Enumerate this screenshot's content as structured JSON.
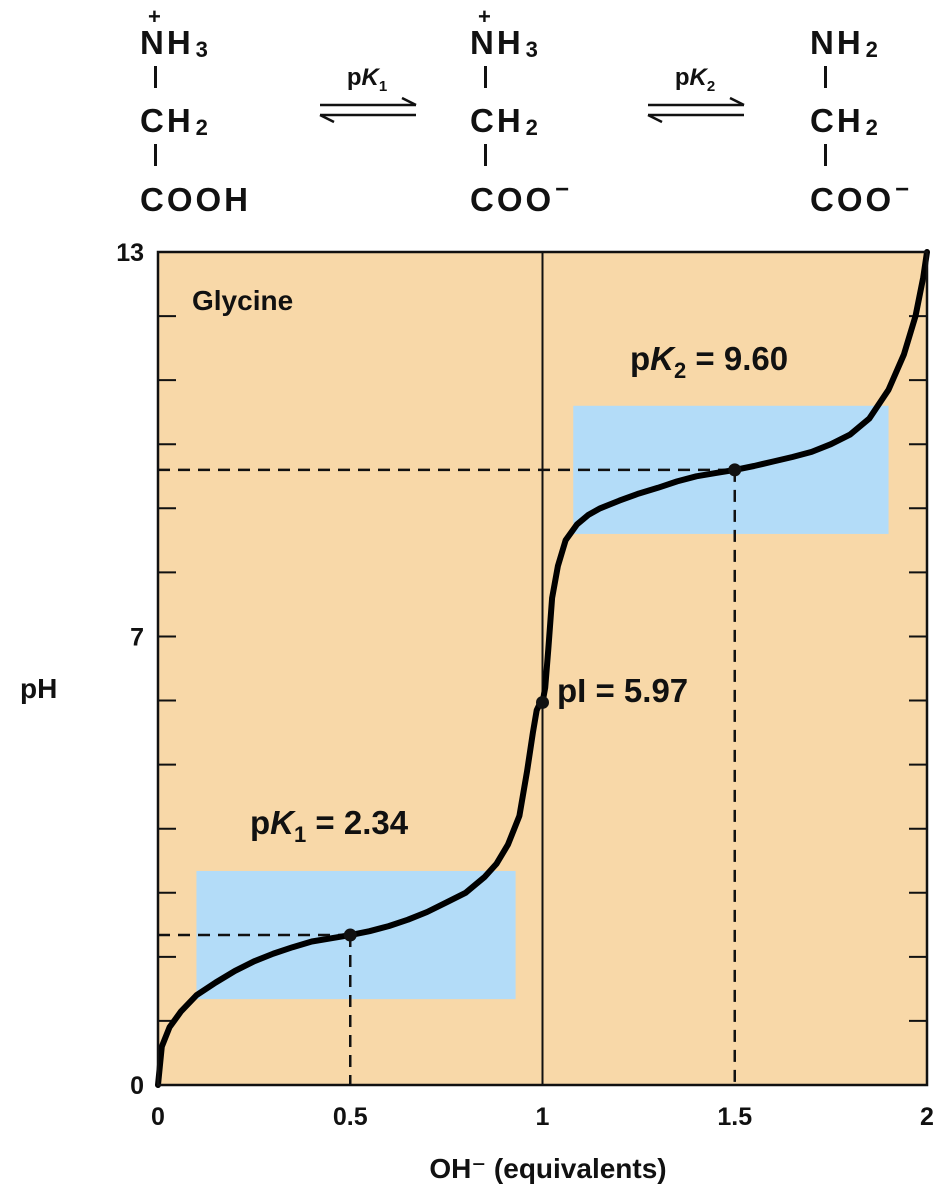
{
  "reaction": {
    "species": [
      {
        "top": "NH",
        "top_sub": "3",
        "top_charge": "+",
        "mid": "CH",
        "mid_sub": "2",
        "bottom": "COOH",
        "bottom_charge": ""
      },
      {
        "top": "NH",
        "top_sub": "3",
        "top_charge": "+",
        "mid": "CH",
        "mid_sub": "2",
        "bottom": "COO",
        "bottom_charge": "−"
      },
      {
        "top": "NH",
        "top_sub": "2",
        "top_charge": "",
        "mid": "CH",
        "mid_sub": "2",
        "bottom": "COO",
        "bottom_charge": "−"
      }
    ],
    "equilibria": [
      {
        "prefix": "p",
        "symbol": "K",
        "sub": "1"
      },
      {
        "prefix": "p",
        "symbol": "K",
        "sub": "2"
      }
    ]
  },
  "chart_data": {
    "type": "line",
    "title": "Glycine",
    "xlabel": "OH⁻ (equivalents)",
    "ylabel": "pH",
    "xlim": [
      0,
      2
    ],
    "ylim": [
      0,
      13
    ],
    "xticks": [
      0,
      0.5,
      1,
      1.5,
      2
    ],
    "xtick_labels": [
      "0",
      "0.5",
      "1",
      "1.5",
      "2"
    ],
    "yticks_labeled": [
      0,
      7,
      13
    ],
    "ytick_labels": [
      "0",
      "7",
      "13"
    ],
    "y_minor_ticks": [
      1,
      2,
      3,
      4,
      5,
      6,
      8,
      9,
      10,
      11,
      12
    ],
    "series": [
      {
        "x": [
          0.0,
          0.01,
          0.03,
          0.06,
          0.1,
          0.15,
          0.2,
          0.25,
          0.3,
          0.35,
          0.4,
          0.45,
          0.5,
          0.55,
          0.6,
          0.65,
          0.7,
          0.75,
          0.8,
          0.85,
          0.88,
          0.91,
          0.94,
          0.96,
          0.975,
          0.985,
          0.993,
          1.0,
          1.007,
          1.015,
          1.025,
          1.04,
          1.06,
          1.09,
          1.12,
          1.15,
          1.2,
          1.25,
          1.3,
          1.35,
          1.4,
          1.45,
          1.5,
          1.55,
          1.6,
          1.65,
          1.7,
          1.75,
          1.8,
          1.85,
          1.9,
          1.94,
          1.97,
          1.99,
          2.0
        ],
        "y": [
          0.0,
          0.6,
          0.9,
          1.15,
          1.4,
          1.6,
          1.78,
          1.93,
          2.05,
          2.15,
          2.24,
          2.29,
          2.34,
          2.4,
          2.48,
          2.58,
          2.7,
          2.85,
          3.0,
          3.25,
          3.45,
          3.75,
          4.2,
          4.9,
          5.5,
          5.85,
          5.95,
          5.97,
          6.2,
          6.8,
          7.6,
          8.1,
          8.5,
          8.75,
          8.9,
          9.0,
          9.12,
          9.23,
          9.32,
          9.42,
          9.5,
          9.55,
          9.6,
          9.66,
          9.73,
          9.8,
          9.88,
          10.0,
          10.15,
          10.4,
          10.85,
          11.4,
          12.0,
          12.6,
          13.0
        ]
      }
    ],
    "buffer_regions": [
      {
        "x": [
          0.1,
          0.93
        ],
        "y": [
          1.34,
          3.34
        ]
      },
      {
        "x": [
          1.08,
          1.9
        ],
        "y": [
          8.6,
          10.6
        ]
      }
    ],
    "points": [
      {
        "x": 0.5,
        "y": 2.34,
        "label": "pK₁ = 2.34",
        "dashed_guides": true
      },
      {
        "x": 1.0,
        "y": 5.97,
        "label": "pI = 5.97",
        "dashed_guides": false
      },
      {
        "x": 1.5,
        "y": 9.6,
        "label": "pK₂ = 9.60",
        "dashed_guides": true
      }
    ],
    "annotations": {
      "pk1": {
        "prefix": "p",
        "symbol": "K",
        "sub": "1",
        "eq": " = 2.34"
      },
      "pk2": {
        "prefix": "p",
        "symbol": "K",
        "sub": "2",
        "eq": " = 9.60"
      },
      "pi": "pI = 5.97"
    },
    "equivalence_line_x": 1.0,
    "colors": {
      "background": "#f8d8a8",
      "buffer": "#b3dcf8",
      "curve": "#000000"
    }
  }
}
